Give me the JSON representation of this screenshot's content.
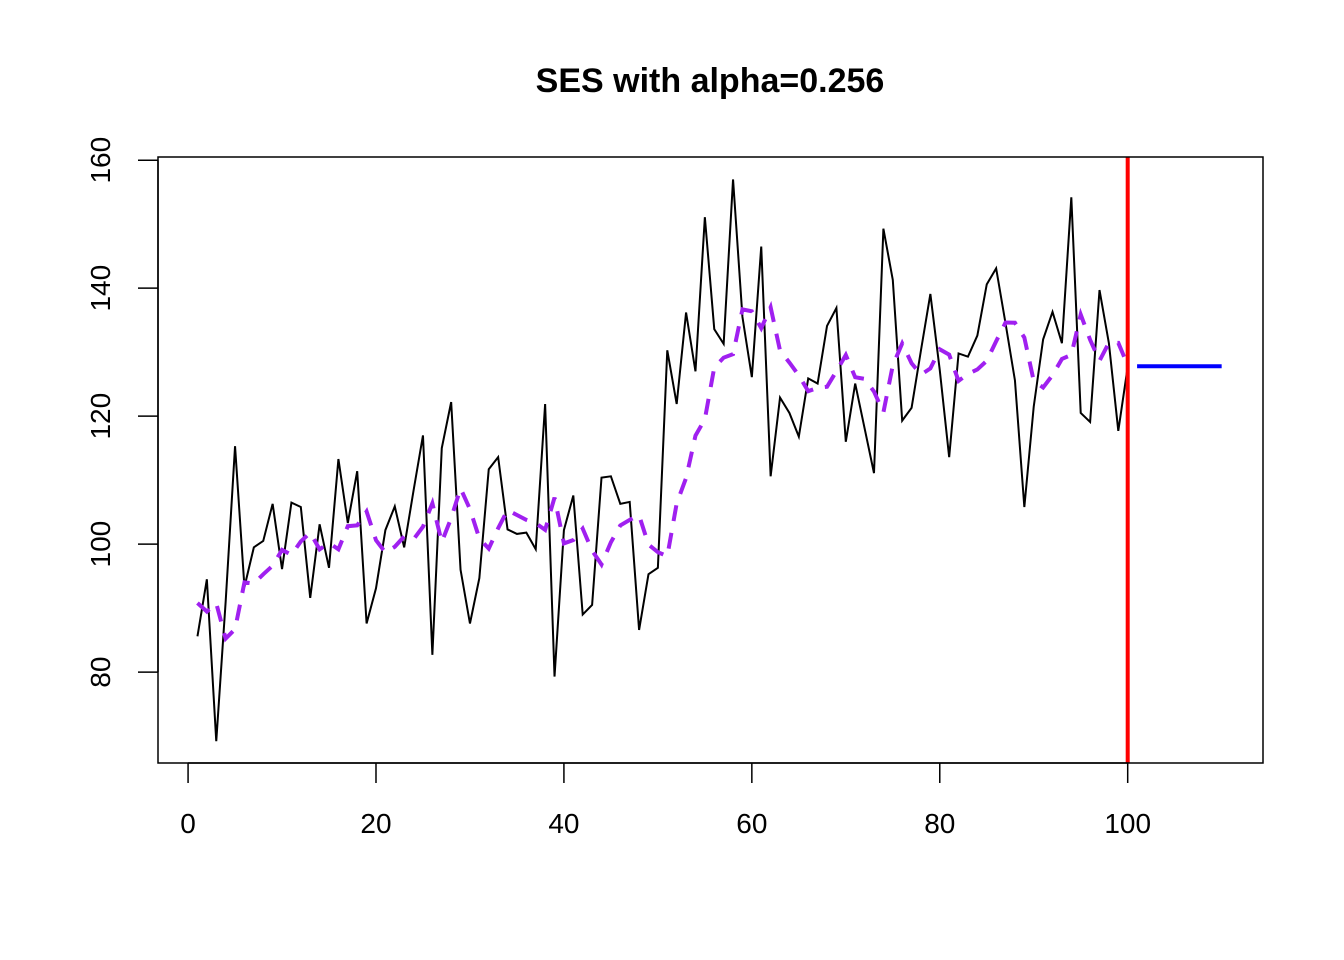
{
  "chart_data": {
    "type": "line",
    "title": "SES with alpha=0.256",
    "alpha": 0.256,
    "xlabel": "",
    "ylabel": "",
    "xlim": [
      -3.2,
      114.4
    ],
    "ylim": [
      65.8,
      160.5
    ],
    "xticks": [
      0,
      20,
      40,
      60,
      80,
      100
    ],
    "yticks": [
      80,
      100,
      120,
      140,
      160
    ],
    "grid": false,
    "series": [
      {
        "name": "observed",
        "color": "#000000",
        "style": "solid",
        "x_start": 1,
        "values": [
          85.6,
          94.5,
          69.2,
          91,
          115.3,
          93.3,
          99.5,
          100.5,
          106.3,
          96.1,
          106.5,
          105.8,
          91.6,
          103.1,
          96.3,
          113.3,
          103.3,
          111.4,
          87.6,
          93.1,
          102.2,
          105.9,
          99.5,
          108.4,
          117,
          82.7,
          115,
          122.2,
          96,
          87.6,
          94.7,
          111.7,
          113.6,
          102.3,
          101.6,
          101.8,
          99.2,
          121.9,
          79.3,
          102.2,
          107.6,
          89,
          90.5,
          110.4,
          110.6,
          106.3,
          106.6,
          86.6,
          95.3,
          96.3,
          130.3,
          121.9,
          136.2,
          127,
          151.1,
          133.6,
          131.3,
          157,
          135.5,
          126.1,
          146.5,
          110.6,
          122.9,
          120.5,
          116.8,
          125.9,
          125.1,
          134.1,
          136.9,
          116,
          125.1,
          118.1,
          111.1,
          149.3,
          141.3,
          119.3,
          121.3,
          130.3,
          139.1,
          127.2,
          113.6,
          129.8,
          129.3,
          132.6,
          140.6,
          143.1,
          134.5,
          125.6,
          105.8,
          121.5,
          132,
          136.3,
          131.4,
          154.2,
          120.5,
          119.1,
          139.7,
          131.4,
          117.7,
          127.7
        ]
      },
      {
        "name": "fitted",
        "color": "#a020f0",
        "style": "dashed",
        "initial_level": 90.8
      },
      {
        "name": "forecast",
        "color": "#0000ff",
        "style": "solid",
        "x": [
          101,
          110
        ],
        "value": 127.8
      }
    ],
    "vline": {
      "x": 100,
      "color": "#ff0000"
    }
  }
}
